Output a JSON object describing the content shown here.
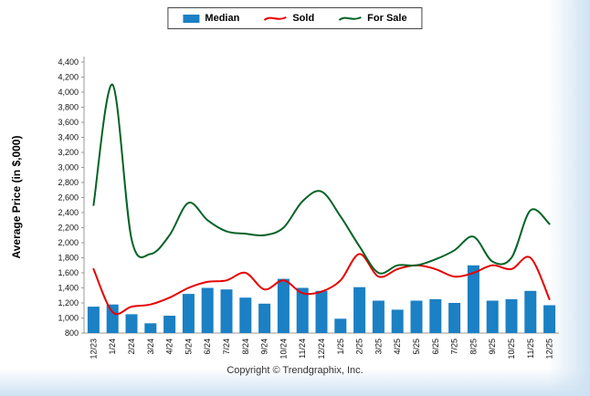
{
  "chart_data": {
    "type": "combo",
    "title": "",
    "ylabel": "Average Price (in $,000)",
    "ylim": [
      800,
      4400
    ],
    "ytick_step": 200,
    "grid": false,
    "legend_position": "top",
    "categories": [
      "12/23",
      "1/24",
      "2/24",
      "3/24",
      "4/24",
      "5/24",
      "6/24",
      "7/24",
      "8/24",
      "9/24",
      "10/24",
      "11/24",
      "12/24",
      "1/25",
      "2/25",
      "3/25",
      "4/25",
      "5/25",
      "6/25",
      "7/25",
      "8/25",
      "9/25",
      "10/25",
      "11/25",
      "12/25"
    ],
    "series": [
      {
        "name": "Median",
        "type": "bar",
        "color": "#1b80c4",
        "values": [
          1150,
          1180,
          1050,
          930,
          1030,
          1320,
          1400,
          1380,
          1270,
          1190,
          1520,
          1400,
          1360,
          990,
          1410,
          1230,
          1110,
          1230,
          1250,
          1200,
          1700,
          1230,
          1250,
          1360,
          1170
        ]
      },
      {
        "name": "Sold",
        "type": "line",
        "color": "#e60000",
        "values": [
          1650,
          1080,
          1150,
          1180,
          1270,
          1400,
          1480,
          1500,
          1600,
          1380,
          1500,
          1330,
          1350,
          1500,
          1850,
          1550,
          1650,
          1700,
          1650,
          1550,
          1600,
          1700,
          1650,
          1800,
          1250
        ]
      },
      {
        "name": "For Sale",
        "type": "line",
        "color": "#046326",
        "values": [
          2500,
          4100,
          2050,
          1850,
          2100,
          2530,
          2300,
          2150,
          2120,
          2100,
          2200,
          2550,
          2680,
          2350,
          1950,
          1600,
          1700,
          1700,
          1780,
          1900,
          2080,
          1750,
          1800,
          2430,
          2250
        ]
      }
    ],
    "footer": "Copyright © Trendgraphix, Inc."
  }
}
